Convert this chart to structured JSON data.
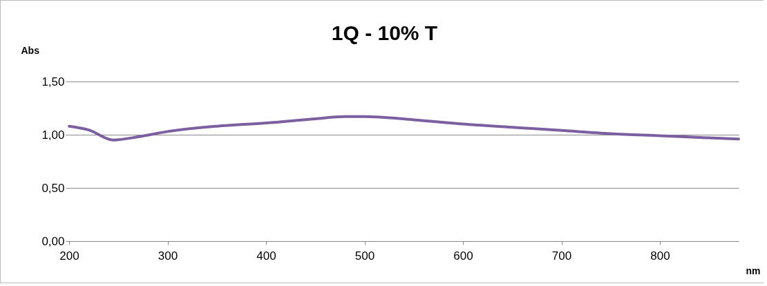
{
  "chart_data": {
    "type": "line",
    "title": "1Q - 10% T",
    "xlabel": "nm",
    "ylabel": "Abs",
    "x": [
      200,
      220,
      245,
      270,
      300,
      350,
      400,
      450,
      480,
      500,
      550,
      600,
      650,
      700,
      750,
      800,
      850,
      880
    ],
    "series": [
      {
        "color": "#7b5fa0",
        "values": [
          1.08,
          1.045,
          0.95,
          0.98,
          1.03,
          1.08,
          1.11,
          1.15,
          1.17,
          1.17,
          1.14,
          1.1,
          1.07,
          1.04,
          1.01,
          0.99,
          0.97,
          0.96
        ]
      }
    ],
    "xlim": [
      200,
      880
    ],
    "xticks": [
      200,
      300,
      400,
      500,
      600,
      700,
      800
    ],
    "ylim": [
      0,
      1.5
    ],
    "yticks": [
      {
        "value": 0,
        "label": "0,00"
      },
      {
        "value": 0.5,
        "label": "0,50"
      },
      {
        "value": 1,
        "label": "1,00"
      },
      {
        "value": 1.5,
        "label": "1,50"
      }
    ],
    "grid": "y",
    "marker": "none",
    "line_style": "solid"
  }
}
